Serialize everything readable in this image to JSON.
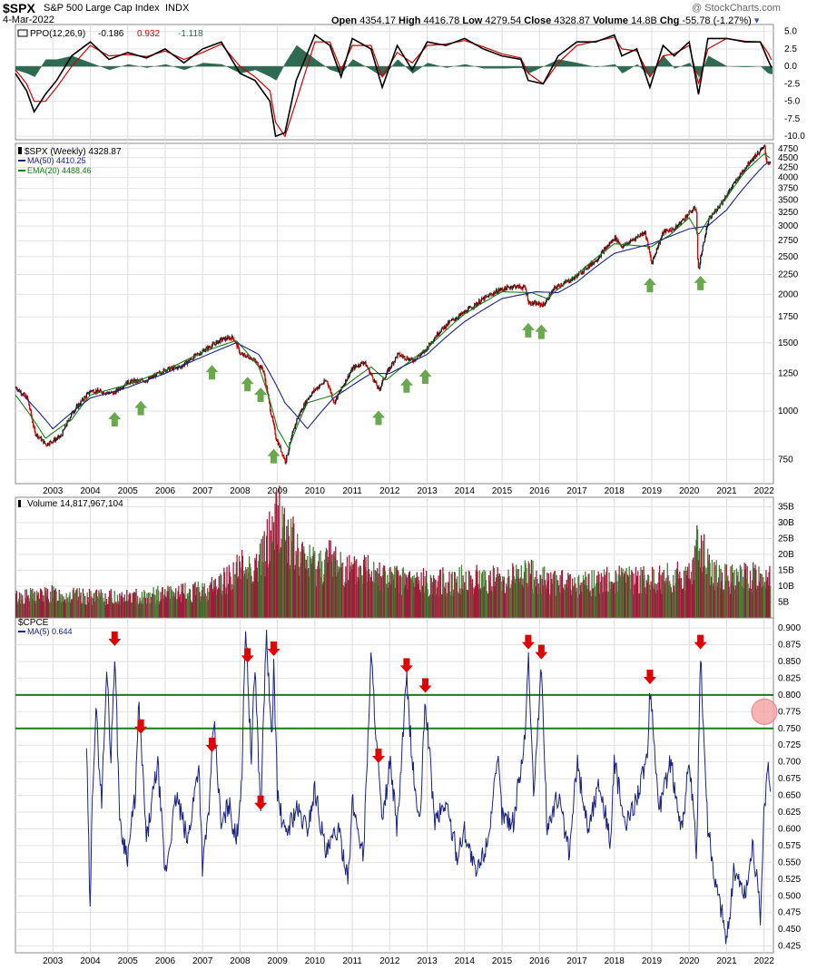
{
  "header": {
    "symbol": "$SPX",
    "name": "S&P 500 Large Cap Index",
    "exchange": "INDX",
    "date": "4-Mar-2022",
    "watermark": "@ StockCharts.com",
    "open_label": "Open",
    "open": "4354.17",
    "high_label": "High",
    "high": "4416.78",
    "low_label": "Low",
    "low": "4279.54",
    "close_label": "Close",
    "close": "4328.87",
    "volume_label": "Volume",
    "volume": "14.8B",
    "chg_label": "Chg",
    "chg": "-55.78 (-1.27%)"
  },
  "colors": {
    "ppo_line": "#000000",
    "ppo_signal": "#cc0000",
    "ppo_hist": "#2e6b52",
    "ma50": "#1a237e",
    "ema20": "#1b7a1b",
    "candle_up": "#1a1a1a",
    "candle_down": "#cc0000",
    "vol_up": "#4a7c3a",
    "vol_down": "#a01a3a",
    "cpce_line": "#1a237e",
    "green_arrow": "#6aa84f",
    "red_arrow": "#e00000",
    "threshold_line": "#1a7a1a",
    "highlight_circle": "#f4a6a6"
  },
  "chart_data": [
    {
      "type": "line",
      "title": "PPO(12,26,9) -0.186, 0.932, -1.118",
      "legend": [
        "PPO(12,26,9)",
        "-0.186",
        "0.932",
        "-1.118"
      ],
      "yticks": [
        5.0,
        2.5,
        0.0,
        -2.5,
        -5.0,
        -7.5,
        -10.0
      ],
      "ylim": [
        -10.5,
        6.0
      ],
      "series": [
        {
          "name": "PPO",
          "x": [
            2002.0,
            2002.3,
            2002.5,
            2002.8,
            2003.1,
            2003.5,
            2004.0,
            2004.5,
            2005.0,
            2005.5,
            2006.0,
            2006.5,
            2007.0,
            2007.5,
            2008.0,
            2008.4,
            2008.8,
            2008.95,
            2009.2,
            2009.5,
            2010.0,
            2010.4,
            2010.7,
            2011.0,
            2011.5,
            2011.8,
            2012.2,
            2012.6,
            2013.0,
            2013.5,
            2014.0,
            2014.5,
            2015.0,
            2015.5,
            2015.7,
            2016.1,
            2016.5,
            2017.0,
            2017.5,
            2018.0,
            2018.2,
            2018.6,
            2018.95,
            2019.3,
            2019.6,
            2020.0,
            2020.25,
            2020.5,
            2021.0,
            2021.5,
            2021.9,
            2022.1,
            2022.2
          ],
          "values": [
            -1.0,
            -3.5,
            -6.5,
            -4.0,
            -2.0,
            1.5,
            3.5,
            1.0,
            2.0,
            1.2,
            2.5,
            0.5,
            2.5,
            3.5,
            -1.0,
            -2.0,
            -5.0,
            -10.0,
            -9.5,
            -2.0,
            4.5,
            3.0,
            -1.5,
            4.0,
            2.5,
            -3.0,
            3.0,
            -0.5,
            3.5,
            3.0,
            4.0,
            2.5,
            1.5,
            1.0,
            -2.0,
            -2.5,
            1.5,
            3.5,
            3.5,
            4.5,
            1.5,
            2.5,
            -3.0,
            3.0,
            1.5,
            3.5,
            -4.0,
            4.0,
            4.0,
            3.5,
            3.5,
            1.0,
            -0.19
          ]
        },
        {
          "name": "Signal",
          "x": [
            2002.0,
            2002.3,
            2002.5,
            2002.8,
            2003.1,
            2003.5,
            2004.0,
            2004.5,
            2005.0,
            2005.5,
            2006.0,
            2006.5,
            2007.0,
            2007.5,
            2008.0,
            2008.4,
            2008.8,
            2008.95,
            2009.2,
            2009.5,
            2010.0,
            2010.4,
            2010.7,
            2011.0,
            2011.5,
            2011.8,
            2012.2,
            2012.6,
            2013.0,
            2013.5,
            2014.0,
            2014.5,
            2015.0,
            2015.5,
            2015.7,
            2016.1,
            2016.5,
            2017.0,
            2017.5,
            2018.0,
            2018.2,
            2018.6,
            2018.95,
            2019.3,
            2019.6,
            2020.0,
            2020.25,
            2020.5,
            2021.0,
            2021.5,
            2021.9,
            2022.1,
            2022.2
          ],
          "values": [
            -0.5,
            -2.5,
            -5.0,
            -5.0,
            -3.0,
            0.0,
            3.0,
            1.5,
            1.7,
            1.4,
            2.2,
            1.0,
            2.0,
            3.2,
            0.0,
            -1.5,
            -3.5,
            -8.0,
            -10.0,
            -5.0,
            3.5,
            3.5,
            -0.5,
            3.0,
            3.0,
            -1.5,
            2.0,
            0.5,
            3.0,
            3.2,
            3.7,
            2.8,
            1.8,
            1.2,
            -1.0,
            -2.5,
            0.5,
            3.0,
            3.6,
            4.2,
            2.5,
            2.2,
            -1.5,
            1.5,
            1.8,
            3.0,
            -2.5,
            2.5,
            4.0,
            3.6,
            3.5,
            2.0,
            0.93
          ]
        }
      ]
    },
    {
      "type": "line",
      "title": "$SPX (Weekly) 4328.87",
      "legend": [
        "$SPX (Weekly) 4328.87",
        "MA(50) 4410.25",
        "EMA(20) 4488.46"
      ],
      "scale": "log",
      "ylim": [
        650,
        4900
      ],
      "yticks": [
        4750,
        4500,
        4250,
        4000,
        3750,
        3500,
        3250,
        3000,
        2750,
        2500,
        2250,
        2000,
        1750,
        1500,
        1250,
        1000,
        750
      ],
      "xticks": [
        "2003",
        "2004",
        "2005",
        "2006",
        "2007",
        "2008",
        "2009",
        "2010",
        "2011",
        "2012",
        "2013",
        "2014",
        "2015",
        "2016",
        "2017",
        "2018",
        "2019",
        "2020",
        "2021",
        "2022"
      ],
      "series": [
        {
          "name": "$SPX",
          "x": [
            2002.0,
            2002.3,
            2002.5,
            2002.8,
            2003.2,
            2003.5,
            2004.0,
            2004.6,
            2005.0,
            2005.5,
            2006.0,
            2006.4,
            2006.8,
            2007.0,
            2007.5,
            2007.8,
            2008.0,
            2008.3,
            2008.6,
            2008.8,
            2008.95,
            2009.2,
            2009.5,
            2009.8,
            2010.0,
            2010.3,
            2010.5,
            2011.0,
            2011.3,
            2011.7,
            2011.8,
            2012.2,
            2012.6,
            2012.9,
            2013.3,
            2013.6,
            2014.0,
            2014.5,
            2014.9,
            2015.3,
            2015.6,
            2015.7,
            2016.1,
            2016.4,
            2016.9,
            2017.5,
            2018.0,
            2018.2,
            2018.8,
            2018.98,
            2019.3,
            2019.6,
            2020.0,
            2020.17,
            2020.22,
            2020.5,
            2020.9,
            2021.3,
            2021.6,
            2022.0,
            2022.05,
            2022.17
          ],
          "values": [
            1150,
            1080,
            880,
            820,
            860,
            990,
            1130,
            1110,
            1190,
            1200,
            1280,
            1300,
            1390,
            1430,
            1530,
            1550,
            1400,
            1370,
            1280,
            1000,
            850,
            740,
            950,
            1080,
            1140,
            1200,
            1050,
            1290,
            1340,
            1130,
            1200,
            1400,
            1350,
            1420,
            1600,
            1700,
            1800,
            1950,
            2050,
            2100,
            2080,
            1900,
            1880,
            2080,
            2200,
            2450,
            2800,
            2650,
            2900,
            2400,
            2900,
            2950,
            3250,
            3350,
            2280,
            3100,
            3500,
            4000,
            4400,
            4800,
            4400,
            4330
          ]
        },
        {
          "name": "MA(50)",
          "x": [
            2002.0,
            2003.0,
            2004.0,
            2005.0,
            2006.0,
            2007.0,
            2007.9,
            2008.5,
            2009.2,
            2009.8,
            2010.5,
            2011.5,
            2012.0,
            2013.0,
            2014.0,
            2015.0,
            2015.9,
            2016.5,
            2017.0,
            2018.0,
            2019.0,
            2020.0,
            2020.5,
            2021.0,
            2021.5,
            2022.0,
            2022.17
          ],
          "values": [
            1150,
            900,
            1080,
            1150,
            1250,
            1380,
            1500,
            1400,
            1050,
            900,
            1080,
            1250,
            1250,
            1400,
            1700,
            1950,
            2030,
            2020,
            2150,
            2550,
            2700,
            2950,
            3000,
            3300,
            3800,
            4300,
            4410
          ]
        },
        {
          "name": "EMA(20)",
          "x": [
            2002.0,
            2002.8,
            2003.5,
            2004.0,
            2005.0,
            2006.0,
            2007.0,
            2007.9,
            2008.5,
            2009.0,
            2009.3,
            2009.8,
            2010.5,
            2011.5,
            2011.9,
            2013.0,
            2014.0,
            2015.0,
            2015.8,
            2016.2,
            2017.0,
            2018.0,
            2018.98,
            2019.5,
            2020.0,
            2020.25,
            2020.6,
            2021.0,
            2021.5,
            2022.0,
            2022.17
          ],
          "values": [
            1100,
            850,
            950,
            1100,
            1170,
            1270,
            1420,
            1520,
            1300,
            900,
            800,
            1050,
            1100,
            1300,
            1200,
            1450,
            1780,
            2030,
            2020,
            1950,
            2250,
            2700,
            2650,
            2850,
            3150,
            2850,
            3200,
            3550,
            4150,
            4600,
            4488
          ]
        }
      ],
      "annotations_green_up_arrows_x": [
        2004.65,
        2005.35,
        2007.25,
        2008.2,
        2008.55,
        2008.9,
        2011.7,
        2012.45,
        2012.95,
        2015.7,
        2016.05,
        2018.95,
        2020.3
      ]
    },
    {
      "type": "bar",
      "title": "Volume 14,817,967,104",
      "legend": [
        "Volume 14,817,967,104"
      ],
      "yticks": [
        "35B",
        "30B",
        "25B",
        "20B",
        "15B",
        "10B",
        "5B"
      ],
      "ylim": [
        0,
        38
      ],
      "unit": "B",
      "series": [
        {
          "name": "Volume",
          "x": [
            2002.0,
            2003.0,
            2004.0,
            2005.0,
            2006.0,
            2007.0,
            2007.5,
            2008.0,
            2008.5,
            2008.8,
            2009.0,
            2009.3,
            2009.6,
            2010.0,
            2010.5,
            2011.0,
            2011.5,
            2012.0,
            2013.0,
            2014.0,
            2015.0,
            2015.6,
            2016.0,
            2017.0,
            2018.0,
            2019.0,
            2020.0,
            2020.2,
            2020.6,
            2021.0,
            2022.0,
            2022.17
          ],
          "values": [
            7,
            8,
            7,
            7,
            8,
            9,
            12,
            17,
            18,
            28,
            35,
            27,
            20,
            18,
            20,
            15,
            18,
            13,
            12,
            13,
            13,
            15,
            13,
            11,
            13,
            13,
            14,
            25,
            15,
            13,
            14,
            14.8
          ]
        }
      ]
    },
    {
      "type": "line",
      "title": "$CPCE",
      "legend": [
        "$CPCE",
        "MA(5) 0.644"
      ],
      "ylim": [
        0.415,
        0.915
      ],
      "yticks": [
        0.9,
        0.875,
        0.85,
        0.825,
        0.8,
        0.775,
        0.75,
        0.725,
        0.7,
        0.675,
        0.65,
        0.625,
        0.6,
        0.575,
        0.55,
        0.525,
        0.5,
        0.475,
        0.45,
        0.425
      ],
      "xticks": [
        "2003",
        "2004",
        "2005",
        "2006",
        "2007",
        "2008",
        "2009",
        "2010",
        "2011",
        "2012",
        "2013",
        "2014",
        "2015",
        "2016",
        "2017",
        "2018",
        "2019",
        "2020",
        "2021",
        "2022"
      ],
      "threshold_lines": [
        0.8,
        0.75
      ],
      "highlight_zone_value": 0.775,
      "series": [
        {
          "name": "MA(5)",
          "x": [
            2003.9,
            2004.0,
            2004.05,
            2004.15,
            2004.3,
            2004.45,
            2004.55,
            2004.65,
            2004.8,
            2005.0,
            2005.2,
            2005.3,
            2005.5,
            2005.8,
            2006.0,
            2006.3,
            2006.6,
            2006.9,
            2007.0,
            2007.2,
            2007.3,
            2007.5,
            2007.7,
            2007.9,
            2008.05,
            2008.15,
            2008.3,
            2008.4,
            2008.55,
            2008.7,
            2008.85,
            2008.9,
            2009.0,
            2009.2,
            2009.5,
            2009.8,
            2010.0,
            2010.3,
            2010.6,
            2010.9,
            2011.0,
            2011.3,
            2011.5,
            2011.7,
            2011.8,
            2012.0,
            2012.2,
            2012.45,
            2012.6,
            2012.8,
            2012.95,
            2013.2,
            2013.5,
            2013.8,
            2014.0,
            2014.3,
            2014.6,
            2014.9,
            2015.0,
            2015.3,
            2015.6,
            2015.7,
            2015.85,
            2016.05,
            2016.2,
            2016.5,
            2016.8,
            2017.0,
            2017.3,
            2017.6,
            2017.9,
            2018.0,
            2018.3,
            2018.6,
            2018.9,
            2018.95,
            2019.2,
            2019.5,
            2019.8,
            2020.0,
            2020.2,
            2020.3,
            2020.5,
            2020.7,
            2020.9,
            2021.0,
            2021.2,
            2021.5,
            2021.7,
            2021.9,
            2022.0,
            2022.1,
            2022.17
          ],
          "values": [
            0.725,
            0.46,
            0.65,
            0.78,
            0.64,
            0.845,
            0.7,
            0.865,
            0.6,
            0.56,
            0.65,
            0.785,
            0.58,
            0.7,
            0.53,
            0.65,
            0.58,
            0.7,
            0.54,
            0.65,
            0.763,
            0.6,
            0.64,
            0.58,
            0.68,
            0.91,
            0.7,
            0.845,
            0.62,
            0.895,
            0.72,
            0.85,
            0.65,
            0.59,
            0.63,
            0.6,
            0.66,
            0.56,
            0.6,
            0.53,
            0.64,
            0.56,
            0.86,
            0.69,
            0.6,
            0.7,
            0.6,
            0.825,
            0.7,
            0.6,
            0.795,
            0.61,
            0.64,
            0.56,
            0.6,
            0.53,
            0.58,
            0.7,
            0.62,
            0.61,
            0.73,
            0.86,
            0.65,
            0.845,
            0.6,
            0.65,
            0.56,
            0.7,
            0.6,
            0.67,
            0.58,
            0.7,
            0.6,
            0.65,
            0.71,
            0.808,
            0.63,
            0.7,
            0.6,
            0.7,
            0.56,
            0.86,
            0.6,
            0.52,
            0.47,
            0.43,
            0.54,
            0.5,
            0.58,
            0.47,
            0.62,
            0.7,
            0.644
          ]
        }
      ],
      "annotations_red_down_arrows_x": [
        2004.65,
        2005.35,
        2007.25,
        2008.2,
        2008.55,
        2008.9,
        2011.7,
        2012.45,
        2012.95,
        2015.7,
        2016.05,
        2018.95,
        2020.3
      ]
    }
  ]
}
